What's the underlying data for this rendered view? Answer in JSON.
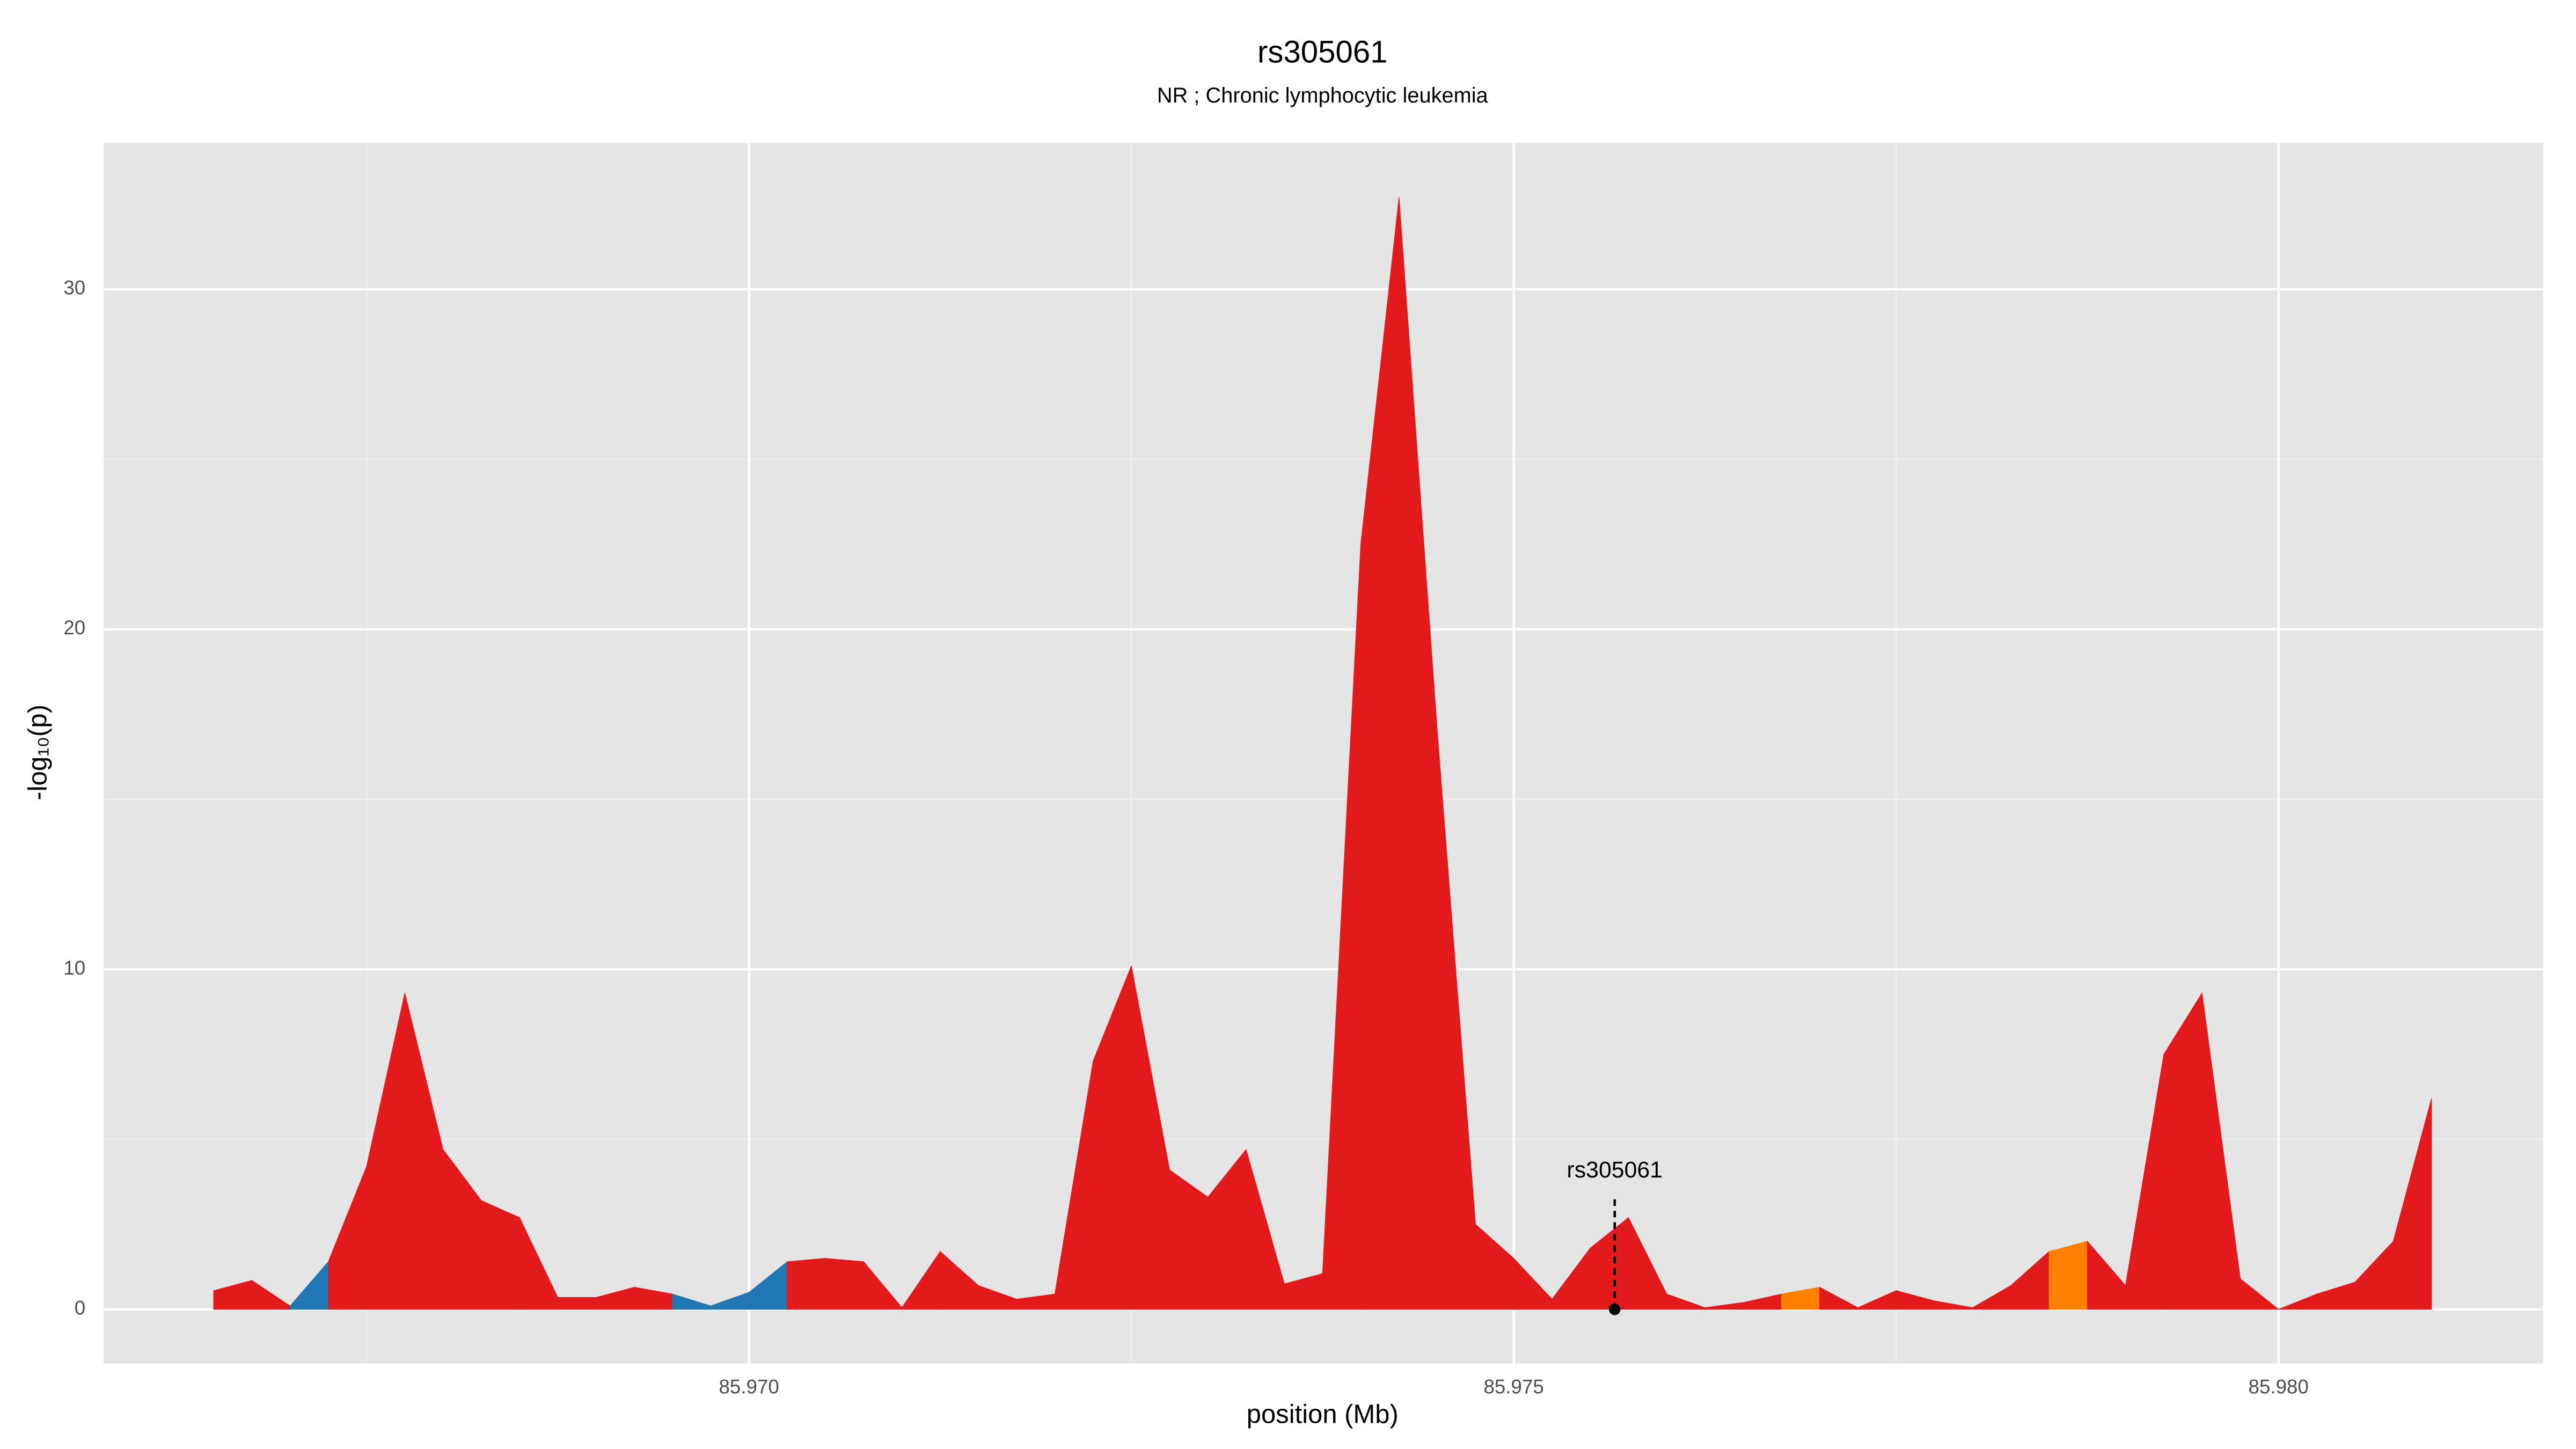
{
  "chart_data": {
    "type": "area",
    "title": "rs305061",
    "subtitle": "NR ; Chronic lymphocytic leukemia",
    "xlabel": "position (Mb)",
    "ylabel": "-log₁₀(p)",
    "x": [
      85.9665,
      85.96675,
      85.967,
      85.96725,
      85.9675,
      85.96775,
      85.968,
      85.96825,
      85.9685,
      85.96875,
      85.969,
      85.96925,
      85.9695,
      85.96975,
      85.97,
      85.97025,
      85.9705,
      85.97075,
      85.971,
      85.97125,
      85.9715,
      85.97175,
      85.972,
      85.97225,
      85.9725,
      85.97275,
      85.973,
      85.97325,
      85.9735,
      85.97375,
      85.974,
      85.97425,
      85.9745,
      85.97475,
      85.975,
      85.97525,
      85.9755,
      85.97575,
      85.976,
      85.97625,
      85.9765,
      85.97675,
      85.977,
      85.97725,
      85.9775,
      85.97775,
      85.978,
      85.97825,
      85.9785,
      85.97875,
      85.979,
      85.97925,
      85.9795,
      85.97975,
      85.98,
      85.98025,
      85.9805,
      85.98075,
      85.981
    ],
    "values": [
      0.55,
      0.85,
      0.1,
      1.4,
      4.2,
      9.3,
      4.7,
      3.2,
      2.7,
      0.35,
      0.35,
      0.65,
      0.45,
      0.1,
      0.5,
      1.4,
      1.5,
      1.4,
      0.05,
      1.7,
      0.7,
      0.3,
      0.45,
      7.3,
      10.1,
      4.1,
      3.3,
      4.7,
      0.75,
      1.05,
      22.5,
      32.7,
      17,
      2.5,
      1.5,
      0.3,
      1.8,
      2.7,
      0.45,
      0.05,
      0.2,
      0.45,
      0.65,
      0.05,
      0.55,
      0.25,
      0.05,
      0.7,
      1.7,
      2.0,
      0.7,
      7.5,
      9.3,
      0.9,
      0,
      0.45,
      0.8,
      2.0,
      6.2
    ],
    "colors": [
      "#e31a1c",
      "#e31a1c",
      "#e31a1c",
      "#1f78b4",
      "#e31a1c",
      "#e31a1c",
      "#e31a1c",
      "#e31a1c",
      "#e31a1c",
      "#e31a1c",
      "#e31a1c",
      "#e31a1c",
      "#e31a1c",
      "#1f78b4",
      "#1f78b4",
      "#1f78b4",
      "#e31a1c",
      "#e31a1c",
      "#e31a1c",
      "#e31a1c",
      "#e31a1c",
      "#e31a1c",
      "#e31a1c",
      "#e31a1c",
      "#e31a1c",
      "#e31a1c",
      "#e31a1c",
      "#e31a1c",
      "#e31a1c",
      "#e31a1c",
      "#e31a1c",
      "#e31a1c",
      "#e31a1c",
      "#e31a1c",
      "#e31a1c",
      "#e31a1c",
      "#e31a1c",
      "#e31a1c",
      "#e31a1c",
      "#e31a1c",
      "#e31a1c",
      "#e31a1c",
      "#ff7f00",
      "#e31a1c",
      "#e31a1c",
      "#e31a1c",
      "#e31a1c",
      "#e31a1c",
      "#e31a1c",
      "#ff7f00",
      "#e31a1c",
      "#e31a1c",
      "#e31a1c",
      "#e31a1c",
      "#e31a1c",
      "#e31a1c",
      "#e31a1c",
      "#e31a1c",
      "#e31a1c"
    ],
    "annotation": {
      "text": "rs305061",
      "x": 85.97566,
      "y": 0
    },
    "xlim": [
      85.96578,
      85.98173
    ],
    "ylim": [
      -1.594,
      34.3
    ],
    "xticks": [
      {
        "value": 85.97,
        "label": "85.970"
      },
      {
        "value": 85.975,
        "label": "85.975"
      },
      {
        "value": 85.98,
        "label": "85.980"
      }
    ],
    "xminorticks": [
      85.9675,
      85.9725,
      85.9775
    ],
    "yticks": [
      0,
      10,
      20,
      30
    ],
    "yminorticks": [
      5,
      15,
      25
    ],
    "grid": true
  }
}
